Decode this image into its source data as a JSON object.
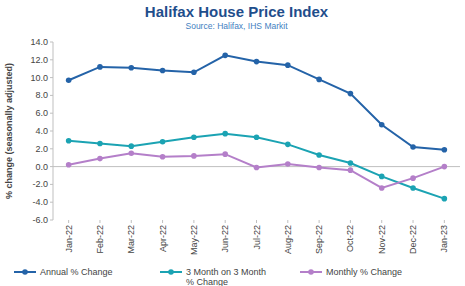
{
  "chart_data": {
    "type": "line",
    "title": "Halifax House Price Index",
    "subtitle": "Source: Halifax, IHS Markit",
    "y_label": "% change (seasonally adjusted)",
    "categories": [
      "Jan-22",
      "Feb-22",
      "Mar-22",
      "Apr-22",
      "May-22",
      "Jun-22",
      "Jul-22",
      "Aug-22",
      "Sep-22",
      "Oct-22",
      "Nov-22",
      "Dec-22",
      "Jan-23"
    ],
    "series": [
      {
        "name": "Annual % Change",
        "color": "#2463a8",
        "marker": "circle",
        "values": [
          9.7,
          11.2,
          11.1,
          10.8,
          10.6,
          12.5,
          11.8,
          11.4,
          9.8,
          8.2,
          4.7,
          2.2,
          1.9
        ]
      },
      {
        "name": "3 Month on 3 Month % Change",
        "color": "#1ba3b3",
        "marker": "circle",
        "values": [
          2.9,
          2.6,
          2.3,
          2.8,
          3.3,
          3.7,
          3.3,
          2.5,
          1.3,
          0.4,
          -1.1,
          -2.4,
          -3.6
        ]
      },
      {
        "name": "Monthly % Change",
        "color": "#b47fc9",
        "marker": "circle",
        "values": [
          0.2,
          0.9,
          1.5,
          1.1,
          1.2,
          1.4,
          -0.1,
          0.3,
          -0.1,
          -0.4,
          -2.4,
          -1.3,
          0.0
        ]
      }
    ],
    "ylim": [
      -6,
      14
    ],
    "yticks": [
      {
        "value": -6,
        "label": "-6.0"
      },
      {
        "value": -4,
        "label": "-4.0"
      },
      {
        "value": -2,
        "label": "-2.0"
      },
      {
        "value": 0,
        "label": "0.0"
      },
      {
        "value": 2,
        "label": "2.0"
      },
      {
        "value": 4,
        "label": "4.0"
      },
      {
        "value": 6,
        "label": "6.0"
      },
      {
        "value": 8,
        "label": "8.0"
      },
      {
        "value": 10,
        "label": "10.0"
      },
      {
        "value": 12,
        "label": "12.0"
      },
      {
        "value": 14,
        "label": "14.0"
      }
    ],
    "grid": false,
    "legend": "bottom"
  }
}
